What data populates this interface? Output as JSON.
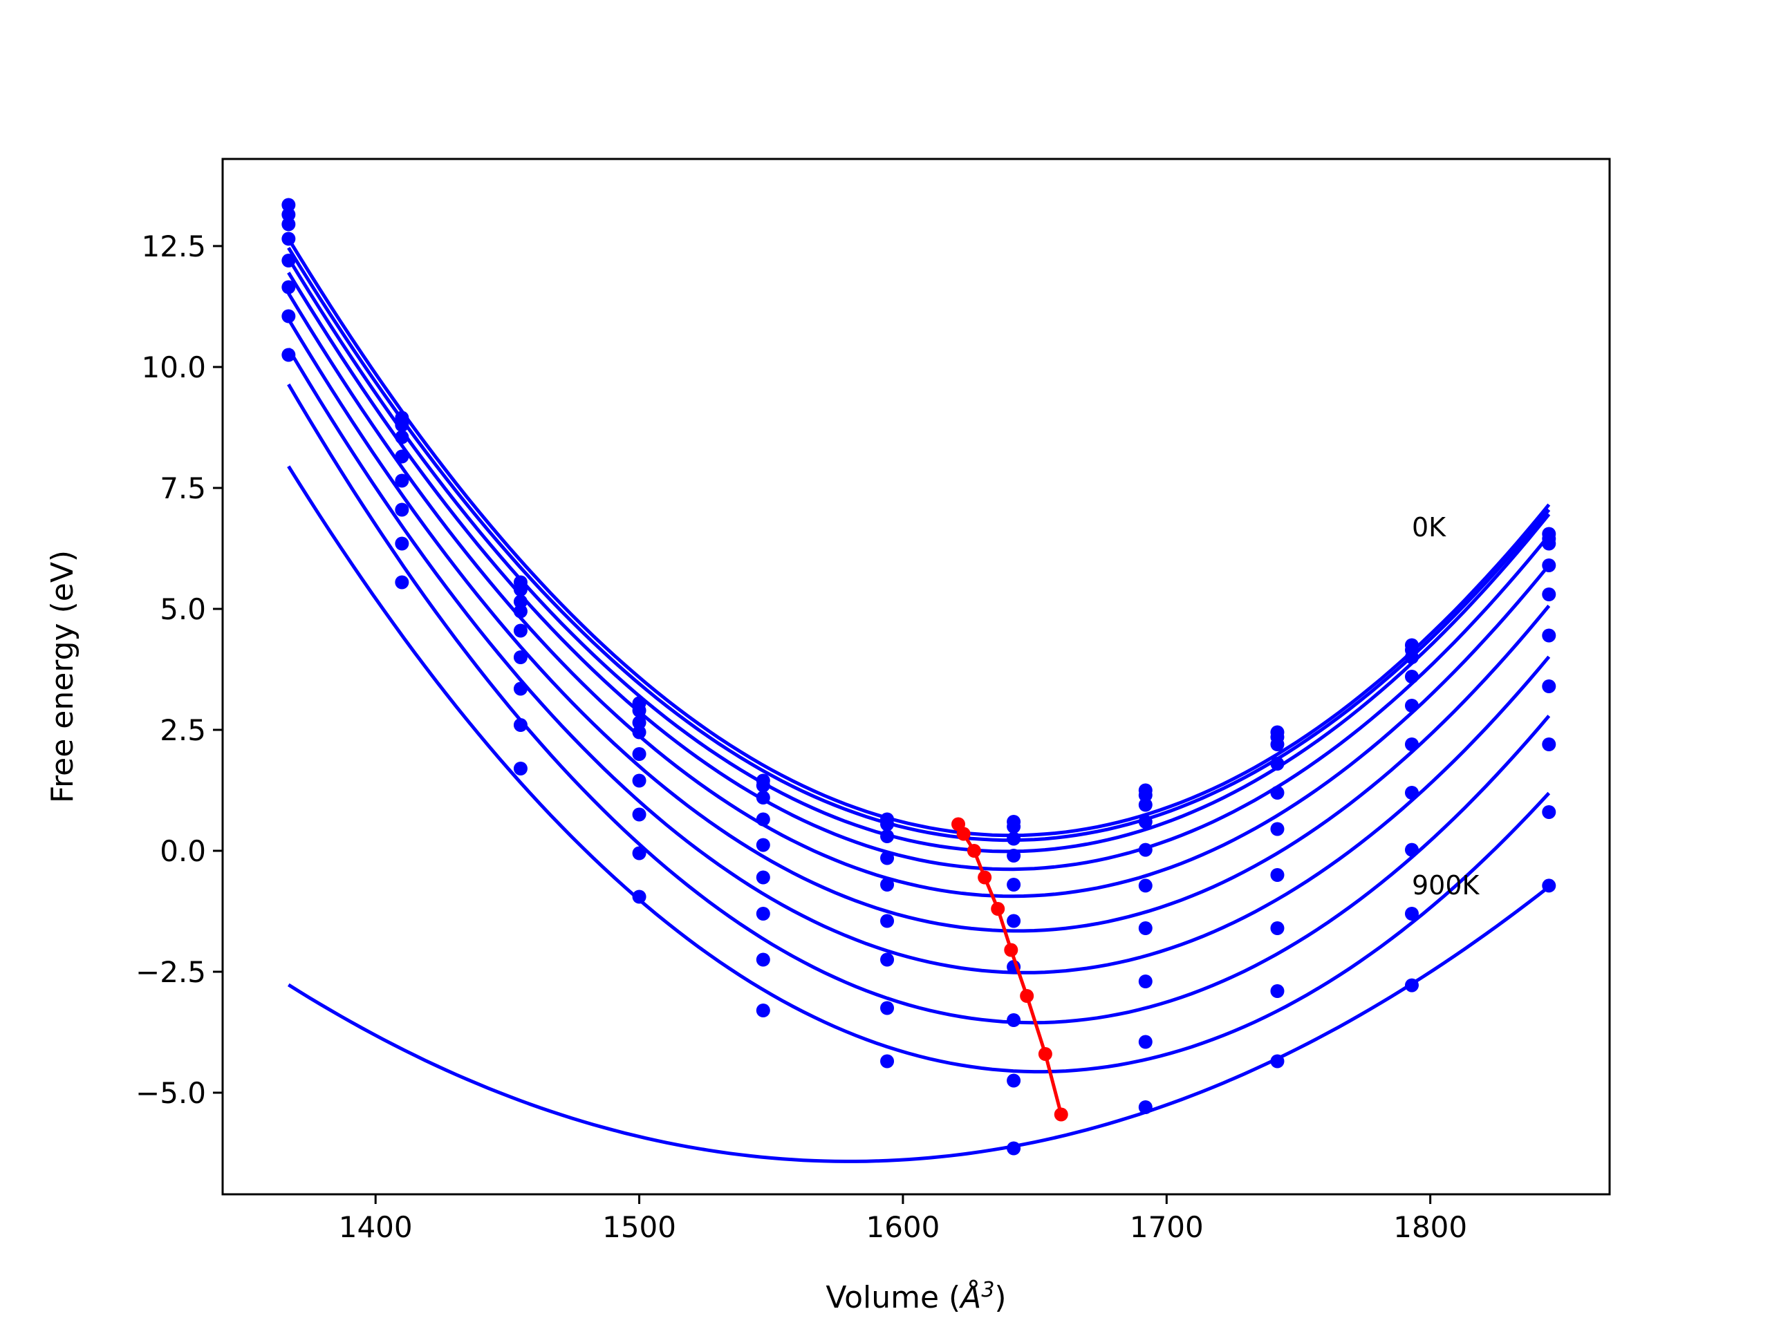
{
  "chart_data": {
    "type": "scatter",
    "xlabel_prefix": "Volume (",
    "xlabel_unit": "Å",
    "xlabel_exp": "3",
    "xlabel_suffix": ")",
    "ylabel": "Free energy (eV)",
    "xlim": [
      1342,
      1868
    ],
    "ylim": [
      -7.1,
      14.3
    ],
    "xticks": [
      1400,
      1500,
      1600,
      1700,
      1800
    ],
    "yticks": [
      -5.0,
      -2.5,
      0.0,
      2.5,
      5.0,
      7.5,
      10.0,
      12.5
    ],
    "ytick_labels": [
      "−5.0",
      "−2.5",
      "0.0",
      "2.5",
      "5.0",
      "7.5",
      "10.0",
      "12.5"
    ],
    "grid": false,
    "annotations": [
      {
        "text": "0K",
        "x": 1793,
        "y": 6.5
      },
      {
        "text": "900K",
        "x": 1793,
        "y": -0.9
      }
    ],
    "colors": {
      "curves": "#0000ff",
      "minimum_line": "#ff0000"
    },
    "volumes": [
      1367,
      1410,
      1455,
      1500,
      1547,
      1594,
      1642,
      1692,
      1742,
      1793,
      1845
    ],
    "series": [
      {
        "values": [
          13.35,
          8.95,
          5.55,
          3.05,
          1.45,
          0.65,
          0.6,
          1.25,
          2.45,
          4.25,
          6.55
        ]
      },
      {
        "values": [
          13.15,
          8.8,
          5.4,
          2.9,
          1.35,
          0.55,
          0.5,
          1.15,
          2.35,
          4.15,
          6.45
        ]
      },
      {
        "values": [
          12.95,
          8.55,
          5.15,
          2.65,
          1.1,
          0.3,
          0.25,
          0.95,
          2.2,
          4.0,
          6.35
        ]
      },
      {
        "values": [
          12.65,
          8.15,
          4.95,
          2.45,
          0.65,
          -0.15,
          -0.1,
          0.6,
          1.8,
          3.6,
          5.9
        ]
      },
      {
        "values": [
          12.2,
          7.65,
          4.55,
          2.0,
          0.12,
          -0.7,
          -0.7,
          0.02,
          1.2,
          3.0,
          5.3
        ]
      },
      {
        "values": [
          11.65,
          7.05,
          4.0,
          1.45,
          -0.55,
          -1.45,
          -1.45,
          -0.72,
          0.45,
          2.2,
          4.45
        ]
      },
      {
        "values": [
          11.05,
          6.35,
          3.35,
          0.75,
          -1.3,
          -2.25,
          -2.4,
          -1.6,
          -0.5,
          1.2,
          3.4
        ]
      },
      {
        "values": [
          10.25,
          5.55,
          2.6,
          -0.05,
          -2.25,
          -3.25,
          -3.5,
          -2.7,
          -1.6,
          0.02,
          2.2
        ]
      },
      {
        "values": [
          null,
          null,
          1.7,
          -0.95,
          -3.3,
          -4.35,
          -4.75,
          -3.95,
          -2.9,
          -1.3,
          0.8
        ]
      },
      {
        "values": [
          null,
          null,
          null,
          null,
          null,
          null,
          -6.15,
          -5.3,
          -4.35,
          -2.78,
          -0.72
        ]
      }
    ],
    "minimum_path": {
      "x": [
        1621,
        1623,
        1627,
        1631,
        1636,
        1641,
        1647,
        1654,
        1660
      ],
      "y": [
        0.55,
        0.35,
        0.0,
        -0.55,
        -1.2,
        -2.05,
        -3.0,
        -4.2,
        -5.45
      ]
    }
  }
}
